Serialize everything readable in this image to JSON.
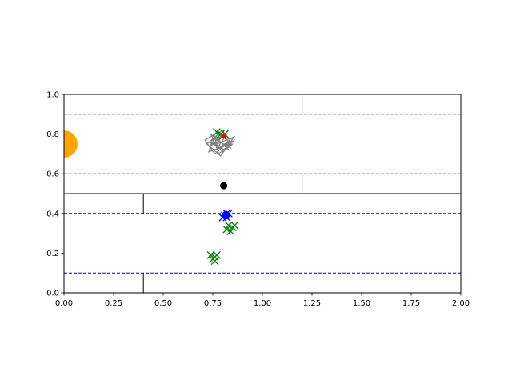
{
  "chart_data": {
    "type": "scatter",
    "title": "",
    "xlabel": "",
    "ylabel": "",
    "xlim": [
      0,
      2
    ],
    "ylim": [
      0,
      1
    ],
    "grid": false,
    "xticks": [
      "0.00",
      "0.25",
      "0.50",
      "0.75",
      "1.00",
      "1.25",
      "1.50",
      "1.75",
      "2.00"
    ],
    "xtick_values": [
      0,
      0.25,
      0.5,
      0.75,
      1.0,
      1.25,
      1.5,
      1.75,
      2.0
    ],
    "yticks": [
      "0.0",
      "0.2",
      "0.4",
      "0.6",
      "0.8",
      "1.0"
    ],
    "ytick_values": [
      0,
      0.2,
      0.4,
      0.6,
      0.8,
      1.0
    ],
    "walls": [
      {
        "x1": 0,
        "y1": 0.5,
        "x2": 2.0,
        "y2": 0.5
      },
      {
        "x1": 1.2,
        "y1": 1.0,
        "x2": 1.2,
        "y2": 0.9
      },
      {
        "x1": 1.2,
        "y1": 0.6,
        "x2": 1.2,
        "y2": 0.5
      },
      {
        "x1": 0.4,
        "y1": 0.5,
        "x2": 0.4,
        "y2": 0.4
      },
      {
        "x1": 0.4,
        "y1": 0.1,
        "x2": 0.4,
        "y2": 0.0
      }
    ],
    "lanes": [
      0.9,
      0.6,
      0.4,
      0.1
    ],
    "target": {
      "x": 0.0,
      "y": 0.75,
      "color": "#ffa500"
    },
    "agent": {
      "x": 0.805,
      "y": 0.54,
      "color": "#000000"
    },
    "trajectory": {
      "color": "#808080",
      "x": [
        0.8,
        0.74,
        0.78,
        0.71,
        0.76,
        0.83,
        0.77,
        0.86,
        0.79,
        0.72,
        0.8,
        0.84,
        0.75,
        0.73,
        0.81,
        0.86,
        0.78,
        0.76,
        0.83,
        0.79,
        0.74,
        0.77,
        0.85,
        0.8,
        0.75,
        0.82,
        0.78,
        0.73,
        0.81,
        0.84,
        0.77,
        0.79
      ],
      "y": [
        0.8,
        0.74,
        0.81,
        0.77,
        0.7,
        0.76,
        0.72,
        0.79,
        0.69,
        0.75,
        0.82,
        0.73,
        0.78,
        0.71,
        0.74,
        0.77,
        0.7,
        0.79,
        0.72,
        0.76,
        0.8,
        0.73,
        0.75,
        0.71,
        0.77,
        0.8,
        0.74,
        0.76,
        0.72,
        0.78,
        0.75,
        0.79
      ]
    },
    "markers_green": {
      "color": "#008000",
      "x": [
        0.79,
        0.8,
        0.77,
        0.81,
        0.83,
        0.85,
        0.84,
        0.82,
        0.86,
        0.74,
        0.76,
        0.75,
        0.77,
        0.76
      ],
      "y": [
        0.8,
        0.79,
        0.81,
        0.8,
        0.34,
        0.33,
        0.31,
        0.32,
        0.34,
        0.19,
        0.18,
        0.17,
        0.19,
        0.16
      ]
    },
    "markers_blue": {
      "color": "#0000ff",
      "x": [
        0.81,
        0.82,
        0.83,
        0.8,
        0.82
      ],
      "y": [
        0.39,
        0.4,
        0.4,
        0.38,
        0.38
      ]
    },
    "marker_red": {
      "x": 0.805,
      "y": 0.79,
      "color": "#ff0000"
    },
    "lane_color": "#0000cc"
  }
}
